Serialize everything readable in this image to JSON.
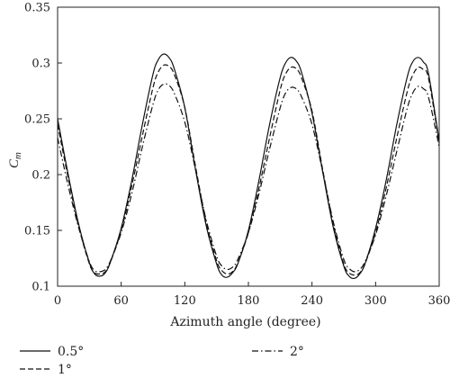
{
  "chart_data": {
    "type": "line",
    "xlabel": "Azimuth angle (degree)",
    "ylabel": "C",
    "ylabel_sub": "m",
    "xlim": [
      0,
      360
    ],
    "ylim": [
      0.1,
      0.35
    ],
    "xticks": [
      0,
      60,
      120,
      180,
      240,
      300,
      360
    ],
    "yticks": [
      0.1,
      0.15,
      0.2,
      0.25,
      0.3,
      0.35
    ],
    "xtick_labels": [
      "0",
      "60",
      "120",
      "180",
      "240",
      "300",
      "360"
    ],
    "ytick_labels": [
      "0.1",
      "0.15",
      "0.2",
      "0.25",
      "0.3",
      "0.35"
    ],
    "grid": false,
    "legend_position": "bottom",
    "series": [
      {
        "name": "0.5°",
        "line_style": "solid",
        "color": "#111111",
        "x": [
          0,
          10,
          20,
          30,
          35,
          40,
          45,
          50,
          60,
          70,
          80,
          90,
          95,
          100,
          105,
          110,
          120,
          130,
          140,
          150,
          155,
          160,
          165,
          170,
          180,
          190,
          200,
          210,
          215,
          220,
          225,
          230,
          240,
          250,
          260,
          270,
          275,
          280,
          285,
          290,
          300,
          310,
          320,
          330,
          335,
          340,
          345,
          350,
          360
        ],
        "y": [
          0.25,
          0.2,
          0.155,
          0.121,
          0.111,
          0.109,
          0.112,
          0.122,
          0.152,
          0.195,
          0.245,
          0.29,
          0.303,
          0.308,
          0.305,
          0.295,
          0.26,
          0.205,
          0.155,
          0.12,
          0.11,
          0.108,
          0.112,
          0.12,
          0.15,
          0.195,
          0.245,
          0.287,
          0.3,
          0.305,
          0.302,
          0.292,
          0.255,
          0.203,
          0.153,
          0.118,
          0.109,
          0.107,
          0.111,
          0.12,
          0.152,
          0.195,
          0.245,
          0.288,
          0.301,
          0.305,
          0.301,
          0.29,
          0.23
        ]
      },
      {
        "name": "1°",
        "line_style": "dashed",
        "color": "#111111",
        "x": [
          0,
          10,
          20,
          30,
          35,
          40,
          45,
          50,
          60,
          70,
          80,
          90,
          95,
          100,
          105,
          110,
          120,
          130,
          140,
          150,
          155,
          160,
          165,
          170,
          180,
          190,
          200,
          210,
          215,
          220,
          225,
          230,
          240,
          250,
          260,
          270,
          275,
          280,
          285,
          290,
          300,
          310,
          320,
          330,
          335,
          340,
          345,
          350,
          360
        ],
        "y": [
          0.245,
          0.197,
          0.153,
          0.12,
          0.112,
          0.111,
          0.113,
          0.122,
          0.15,
          0.19,
          0.235,
          0.278,
          0.292,
          0.298,
          0.297,
          0.29,
          0.26,
          0.208,
          0.158,
          0.123,
          0.114,
          0.111,
          0.113,
          0.121,
          0.148,
          0.188,
          0.233,
          0.276,
          0.29,
          0.296,
          0.295,
          0.287,
          0.257,
          0.205,
          0.156,
          0.12,
          0.112,
          0.11,
          0.112,
          0.12,
          0.148,
          0.188,
          0.233,
          0.275,
          0.289,
          0.296,
          0.294,
          0.286,
          0.228
        ]
      },
      {
        "name": "2°",
        "line_style": "dashdot",
        "color": "#111111",
        "x": [
          0,
          10,
          20,
          30,
          35,
          40,
          45,
          50,
          60,
          70,
          80,
          90,
          95,
          100,
          105,
          110,
          120,
          130,
          140,
          150,
          155,
          160,
          165,
          170,
          180,
          190,
          200,
          210,
          215,
          220,
          225,
          230,
          240,
          250,
          260,
          270,
          275,
          280,
          285,
          290,
          300,
          310,
          320,
          330,
          335,
          340,
          345,
          350,
          360
        ],
        "y": [
          0.233,
          0.19,
          0.152,
          0.122,
          0.114,
          0.113,
          0.115,
          0.123,
          0.148,
          0.183,
          0.225,
          0.263,
          0.276,
          0.281,
          0.28,
          0.273,
          0.247,
          0.205,
          0.16,
          0.127,
          0.118,
          0.115,
          0.117,
          0.124,
          0.148,
          0.183,
          0.223,
          0.26,
          0.273,
          0.278,
          0.277,
          0.27,
          0.245,
          0.203,
          0.158,
          0.124,
          0.116,
          0.113,
          0.115,
          0.122,
          0.146,
          0.181,
          0.221,
          0.26,
          0.273,
          0.279,
          0.277,
          0.269,
          0.225
        ]
      }
    ]
  }
}
